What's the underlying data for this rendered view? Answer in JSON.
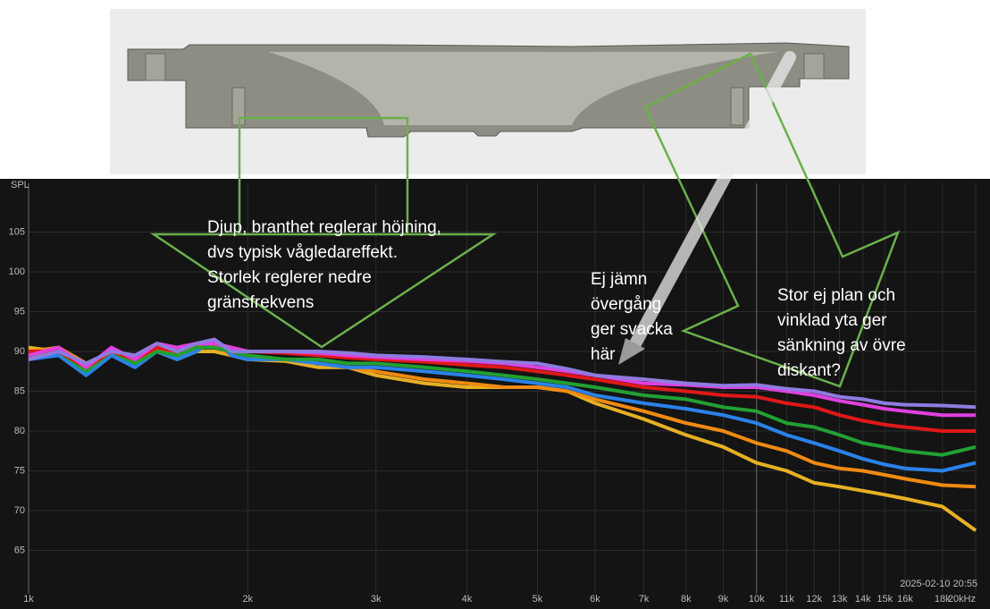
{
  "chart_data": {
    "type": "line",
    "y_label": "SPL",
    "timestamp": "2025-02-10 20:55",
    "xscale": "log",
    "grid": true,
    "xlim": [
      1000,
      20000
    ],
    "ylim": [
      60,
      110
    ],
    "yticks": [
      65,
      70,
      75,
      80,
      85,
      90,
      95,
      100,
      105
    ],
    "xticks": [
      {
        "value": 1000,
        "label": "1k"
      },
      {
        "value": 2000,
        "label": "2k"
      },
      {
        "value": 3000,
        "label": "3k"
      },
      {
        "value": 4000,
        "label": "4k"
      },
      {
        "value": 5000,
        "label": "5k"
      },
      {
        "value": 6000,
        "label": "6k"
      },
      {
        "value": 7000,
        "label": "7k"
      },
      {
        "value": 8000,
        "label": "8k"
      },
      {
        "value": 9000,
        "label": "9k"
      },
      {
        "value": 10000,
        "label": "10k"
      },
      {
        "value": 11000,
        "label": "11k"
      },
      {
        "value": 12000,
        "label": "12k"
      },
      {
        "value": 13000,
        "label": "13k"
      },
      {
        "value": 14000,
        "label": "14k"
      },
      {
        "value": 15000,
        "label": "15k"
      },
      {
        "value": 16000,
        "label": "16k"
      },
      {
        "value": 18000,
        "label": "18k"
      },
      {
        "value": 20000,
        "label": "20kHz"
      }
    ],
    "x": [
      1000,
      1100,
      1200,
      1300,
      1400,
      1500,
      1600,
      1700,
      1800,
      1900,
      2000,
      2250,
      2500,
      2750,
      3000,
      3500,
      4000,
      4500,
      5000,
      5500,
      6000,
      7000,
      8000,
      9000,
      10000,
      11000,
      12000,
      13000,
      14000,
      15000,
      16000,
      18000,
      20000
    ],
    "series": [
      {
        "color": "#8f7be0",
        "values": [
          89,
          90,
          88.5,
          90,
          89.5,
          91,
          90,
          91,
          91.5,
          90,
          90,
          90,
          90,
          89.8,
          89.5,
          89.3,
          89,
          88.7,
          88.5,
          87.8,
          87,
          86.5,
          86,
          85.7,
          85.8,
          85.3,
          85,
          84.3,
          84,
          83.5,
          83.3,
          83.2,
          83
        ]
      },
      {
        "color": "#e040e0",
        "values": [
          89.5,
          90.5,
          88,
          90.5,
          89,
          91,
          90.5,
          91,
          91,
          90.5,
          90,
          90,
          89.8,
          89.5,
          89.3,
          89,
          88.8,
          88.5,
          88,
          87.5,
          87,
          86,
          85.8,
          85.5,
          85.5,
          85,
          84.5,
          83.8,
          83.3,
          82.8,
          82.5,
          82,
          82
        ]
      },
      {
        "color": "#e01818",
        "values": [
          90,
          90,
          88,
          90,
          89,
          90.5,
          90,
          91,
          91,
          90.5,
          90,
          89.8,
          89.5,
          89.2,
          89,
          88.7,
          88.3,
          88,
          87.5,
          87,
          86.5,
          85.5,
          85,
          84.5,
          84.3,
          83.5,
          83,
          82,
          81.3,
          80.8,
          80.5,
          80,
          80
        ]
      },
      {
        "color": "#22a032",
        "values": [
          89.5,
          90,
          87.5,
          90,
          88.5,
          90,
          89.5,
          90.5,
          90.5,
          90,
          89.5,
          89,
          89,
          88.5,
          88.5,
          88,
          87.5,
          87,
          86.5,
          86,
          85.5,
          84.5,
          84,
          83,
          82.5,
          81,
          80.5,
          79.5,
          78.5,
          78,
          77.5,
          77,
          78
        ]
      },
      {
        "color": "#2a82ea",
        "values": [
          89,
          89.5,
          87,
          89.5,
          88,
          90,
          89,
          90,
          91.5,
          89.5,
          89,
          89,
          88.5,
          88,
          88,
          87.5,
          87,
          86.5,
          86,
          85.5,
          84.5,
          83.5,
          82.8,
          82,
          81,
          79.5,
          78.5,
          77.5,
          76.5,
          75.8,
          75.3,
          75,
          76
        ]
      },
      {
        "color": "#f08a12",
        "values": [
          90,
          90.5,
          88.5,
          90,
          89,
          90.5,
          89.5,
          90.5,
          91,
          89.5,
          89,
          89,
          88.5,
          88,
          87.5,
          86.5,
          86,
          85.5,
          85.5,
          85,
          84,
          82.5,
          81,
          80,
          78.5,
          77.5,
          76,
          75.3,
          75,
          74.5,
          74,
          73.2,
          73
        ]
      },
      {
        "color": "#e6b024",
        "values": [
          90.5,
          90,
          88.5,
          89.5,
          89,
          90,
          89,
          90,
          90,
          89.5,
          89,
          88.8,
          88,
          88,
          87,
          86,
          85.5,
          85.5,
          85.5,
          85,
          83.5,
          81.5,
          79.5,
          78,
          76,
          75,
          73.5,
          73,
          72.5,
          72,
          71.5,
          70.5,
          67.5
        ]
      }
    ],
    "annotations": [
      [
        "Djup, branthet reglerar höjning,",
        "dvs typisk vågledareffekt.",
        "Storlek reglerer nedre",
        "gränsfrekvens"
      ],
      [
        "Ej jämn",
        "övergång",
        "ger svacka",
        "här"
      ],
      [
        "Stor ej plan och",
        "vinklad yta ger",
        "sänkning av övre",
        "diskant?"
      ]
    ]
  }
}
